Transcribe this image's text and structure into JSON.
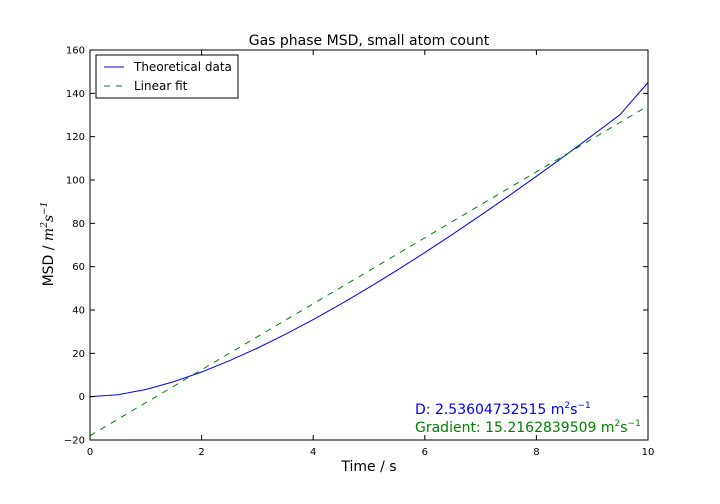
{
  "chart_data": {
    "type": "line",
    "title": "Gas phase MSD, small atom count",
    "xlabel": "Time / s",
    "ylabel": "MSD / m²s⁻¹",
    "xlim": [
      0,
      10
    ],
    "ylim": [
      -20,
      160
    ],
    "x_ticks": [
      0,
      2,
      4,
      6,
      8,
      10
    ],
    "y_ticks": [
      -20,
      0,
      20,
      40,
      60,
      80,
      100,
      120,
      140,
      160
    ],
    "legend_position": "top-left",
    "grid": false,
    "series": [
      {
        "name": "Theoretical data",
        "color": "#0000ff",
        "style": "solid",
        "x": [
          0,
          0.5,
          1,
          1.5,
          2,
          2.5,
          3,
          3.5,
          4,
          4.5,
          5,
          5.5,
          6,
          6.5,
          7,
          7.5,
          8,
          8.5,
          9,
          9.5,
          10
        ],
        "y": [
          0,
          0.9,
          3.3,
          6.9,
          11.4,
          16.6,
          22.4,
          28.8,
          35.6,
          42.8,
          50.4,
          58.3,
          66.5,
          75.0,
          83.7,
          92.6,
          101.7,
          111.0,
          120.5,
          130.2,
          145.0
        ]
      },
      {
        "name": "Linear fit",
        "color": "#008000",
        "style": "dashed",
        "x": [
          0,
          10
        ],
        "y": [
          -18.0,
          134.2
        ]
      }
    ],
    "annotations": [
      {
        "label": "D: 2.53604732515 ",
        "unit": "m",
        "sup1": "2",
        "mid": "s",
        "sup2": "−1",
        "color": "#0000ff"
      },
      {
        "label": "Gradient: 15.2162839509 ",
        "unit": "m",
        "sup1": "2",
        "mid": "s",
        "sup2": "−1",
        "color": "#008000"
      }
    ]
  }
}
